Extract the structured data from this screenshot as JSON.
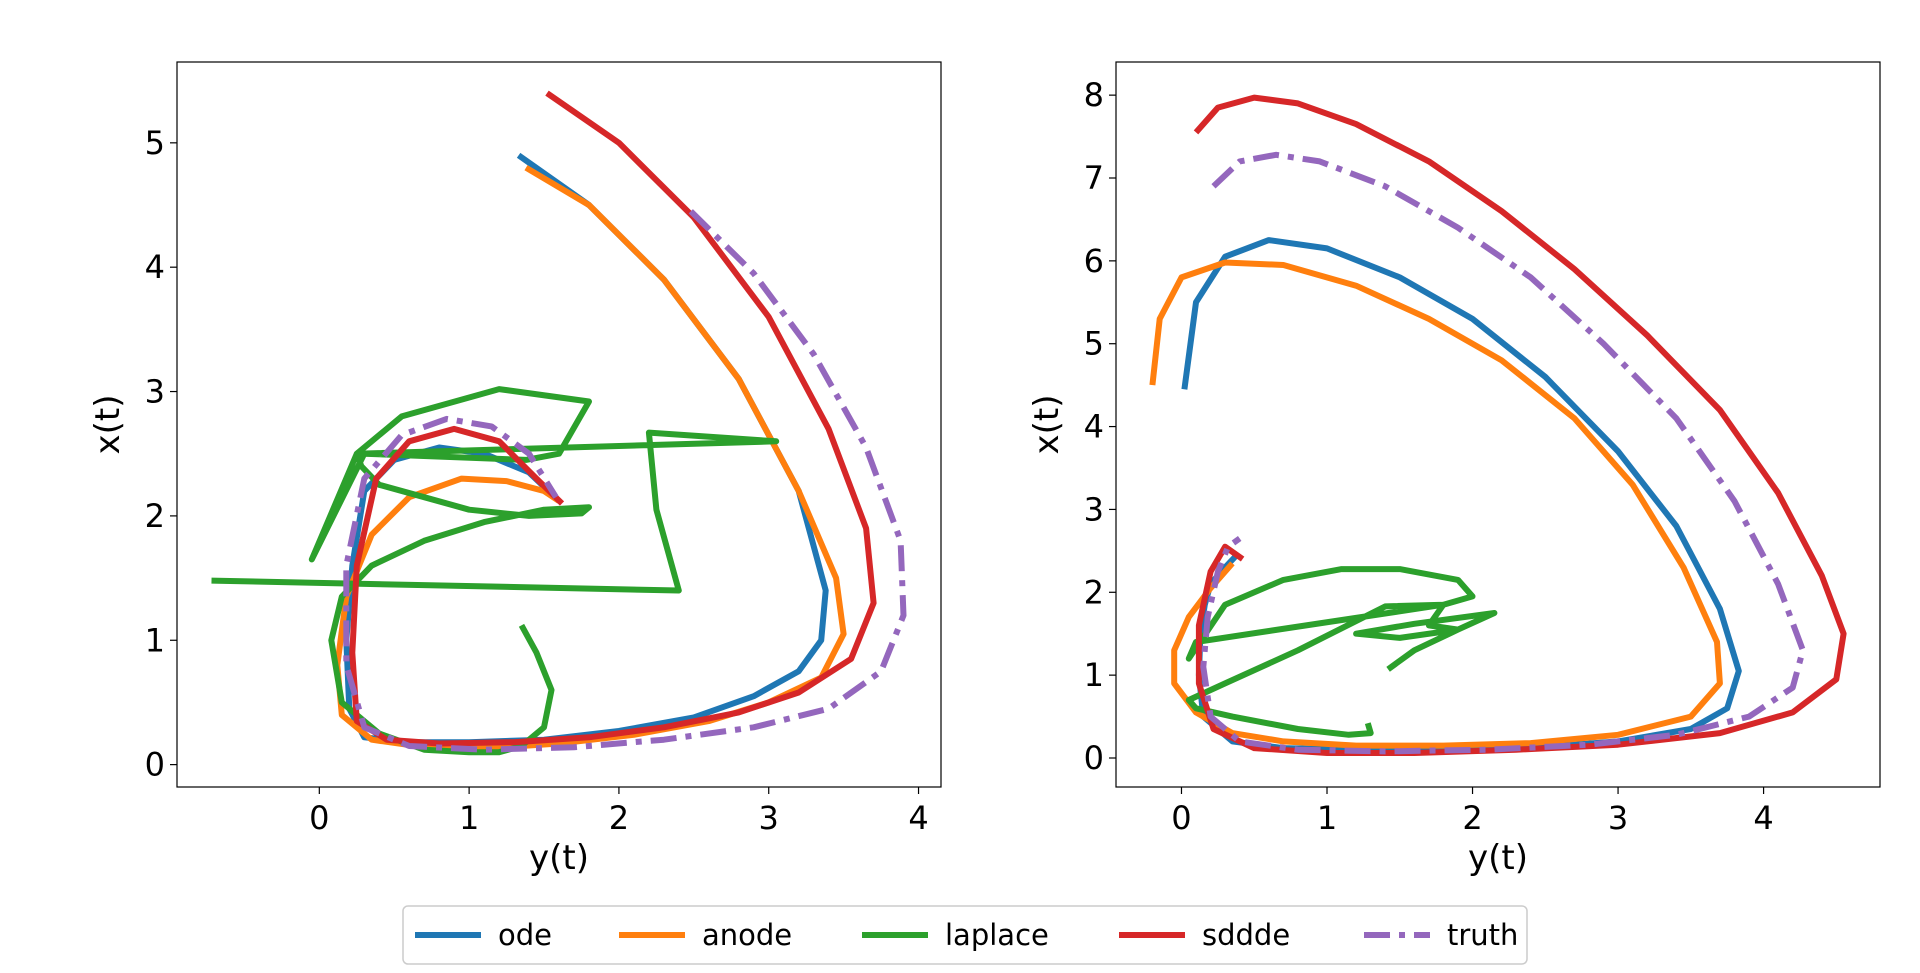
{
  "colors": {
    "ode": "#1f77b4",
    "anode": "#ff7f0e",
    "laplace": "#2ca02c",
    "sdde": "#d62728",
    "truth": "#9467bd"
  },
  "legend": {
    "placement": "bottom-center",
    "entries": [
      {
        "key": "ode",
        "label": "ode",
        "style": "solid"
      },
      {
        "key": "anode",
        "label": "anode",
        "style": "solid"
      },
      {
        "key": "laplace",
        "label": "laplace",
        "style": "solid"
      },
      {
        "key": "sdde",
        "label": "sddde",
        "style": "solid"
      },
      {
        "key": "truth",
        "label": "truth",
        "style": "dashdot"
      }
    ]
  },
  "chart_data": [
    {
      "type": "line",
      "title": "",
      "xlabel": "y(t)",
      "ylabel": "x(t)",
      "xlim": [
        -0.95,
        4.15
      ],
      "ylim": [
        -0.18,
        5.65
      ],
      "xticks": [
        0,
        1,
        2,
        3,
        4
      ],
      "yticks": [
        0,
        1,
        2,
        3,
        4,
        5
      ],
      "grid": false,
      "series": [
        {
          "key": "ode",
          "name": "ode",
          "x": [
            1.33,
            1.8,
            2.3,
            2.8,
            3.2,
            3.38,
            3.35,
            3.2,
            2.9,
            2.5,
            2.0,
            1.5,
            1.0,
            0.6,
            0.3,
            0.2,
            0.18,
            0.22,
            0.3,
            0.5,
            0.8,
            1.1,
            1.4,
            1.6
          ],
          "y": [
            4.9,
            4.5,
            3.9,
            3.1,
            2.2,
            1.4,
            1.0,
            0.75,
            0.55,
            0.38,
            0.27,
            0.2,
            0.18,
            0.18,
            0.22,
            0.45,
            1.0,
            1.6,
            2.2,
            2.45,
            2.55,
            2.5,
            2.35,
            2.12
          ]
        },
        {
          "key": "anode",
          "name": "anode",
          "x": [
            1.38,
            1.8,
            2.3,
            2.8,
            3.2,
            3.45,
            3.5,
            3.35,
            3.0,
            2.6,
            2.1,
            1.6,
            1.1,
            0.7,
            0.35,
            0.15,
            0.12,
            0.18,
            0.35,
            0.6,
            0.95,
            1.25,
            1.5,
            1.6
          ],
          "y": [
            4.8,
            4.5,
            3.9,
            3.1,
            2.2,
            1.5,
            1.05,
            0.7,
            0.5,
            0.35,
            0.24,
            0.17,
            0.13,
            0.14,
            0.2,
            0.4,
            0.8,
            1.35,
            1.85,
            2.15,
            2.3,
            2.28,
            2.2,
            2.12
          ]
        },
        {
          "key": "laplace",
          "name": "laplace",
          "x": [
            1.35,
            1.45,
            1.55,
            1.5,
            1.35,
            1.2,
            1.0,
            0.7,
            0.4,
            0.15,
            0.08,
            0.15,
            0.35,
            0.7,
            1.1,
            1.5,
            1.8,
            1.75,
            1.4,
            1.0,
            0.7,
            0.4,
            0.28,
            0.25,
            0.55,
            1.2,
            1.8,
            1.6,
            1.38,
            0.3,
            -0.05,
            0.25,
            3.05,
            2.2,
            2.25,
            2.4,
            -0.72
          ],
          "y": [
            1.12,
            0.9,
            0.6,
            0.3,
            0.15,
            0.1,
            0.1,
            0.12,
            0.25,
            0.5,
            1.0,
            1.35,
            1.6,
            1.8,
            1.95,
            2.05,
            2.07,
            2.02,
            2.0,
            2.05,
            2.15,
            2.25,
            2.4,
            2.5,
            2.8,
            3.02,
            2.92,
            2.5,
            2.45,
            2.5,
            1.65,
            2.5,
            2.6,
            2.67,
            2.05,
            1.4,
            1.48
          ]
        },
        {
          "key": "sdde",
          "name": "sddde",
          "x": [
            1.52,
            2.0,
            2.5,
            3.0,
            3.4,
            3.65,
            3.7,
            3.55,
            3.2,
            2.8,
            2.3,
            1.8,
            1.3,
            0.8,
            0.45,
            0.25,
            0.22,
            0.25,
            0.38,
            0.6,
            0.9,
            1.2,
            1.45,
            1.62
          ],
          "y": [
            5.4,
            5.0,
            4.4,
            3.6,
            2.7,
            1.9,
            1.3,
            0.85,
            0.58,
            0.42,
            0.3,
            0.22,
            0.18,
            0.17,
            0.2,
            0.35,
            0.9,
            1.6,
            2.3,
            2.6,
            2.7,
            2.6,
            2.3,
            2.1
          ]
        },
        {
          "key": "truth",
          "name": "truth",
          "x": [
            2.48,
            2.9,
            3.3,
            3.65,
            3.88,
            3.9,
            3.75,
            3.4,
            2.9,
            2.3,
            1.7,
            1.1,
            0.6,
            0.3,
            0.18,
            0.18,
            0.3,
            0.55,
            0.85,
            1.15,
            1.4,
            1.58
          ],
          "y": [
            4.45,
            3.95,
            3.3,
            2.55,
            1.8,
            1.2,
            0.75,
            0.45,
            0.3,
            0.2,
            0.14,
            0.12,
            0.15,
            0.3,
            0.8,
            1.6,
            2.3,
            2.65,
            2.78,
            2.72,
            2.5,
            2.15
          ]
        }
      ]
    },
    {
      "type": "line",
      "title": "",
      "xlabel": "y(t)",
      "ylabel": "x(t)",
      "xlim": [
        -0.45,
        4.8
      ],
      "ylim": [
        -0.35,
        8.4
      ],
      "xticks": [
        0,
        1,
        2,
        3,
        4
      ],
      "yticks": [
        0,
        1,
        2,
        3,
        4,
        5,
        6,
        7,
        8
      ],
      "grid": false,
      "series": [
        {
          "key": "ode",
          "name": "ode",
          "x": [
            0.02,
            0.1,
            0.3,
            0.6,
            1.0,
            1.5,
            2.0,
            2.5,
            3.0,
            3.4,
            3.7,
            3.83,
            3.75,
            3.5,
            3.0,
            2.4,
            1.8,
            1.2,
            0.7,
            0.35,
            0.15,
            0.12,
            0.13,
            0.16,
            0.2,
            0.3,
            0.38
          ],
          "y": [
            4.45,
            5.5,
            6.05,
            6.25,
            6.15,
            5.8,
            5.3,
            4.6,
            3.7,
            2.8,
            1.8,
            1.05,
            0.6,
            0.35,
            0.2,
            0.12,
            0.1,
            0.1,
            0.12,
            0.2,
            0.5,
            1.0,
            1.5,
            1.85,
            2.1,
            2.3,
            2.45
          ]
        },
        {
          "key": "anode",
          "name": "anode",
          "x": [
            -0.2,
            -0.15,
            0.0,
            0.3,
            0.7,
            1.2,
            1.7,
            2.2,
            2.7,
            3.1,
            3.45,
            3.68,
            3.7,
            3.5,
            3.0,
            2.4,
            1.8,
            1.2,
            0.7,
            0.35,
            0.1,
            -0.05,
            -0.05,
            0.05,
            0.2,
            0.35
          ],
          "y": [
            4.5,
            5.3,
            5.8,
            5.98,
            5.95,
            5.7,
            5.3,
            4.8,
            4.1,
            3.3,
            2.3,
            1.4,
            0.9,
            0.5,
            0.28,
            0.18,
            0.15,
            0.15,
            0.2,
            0.3,
            0.55,
            0.9,
            1.3,
            1.7,
            2.05,
            2.35
          ]
        },
        {
          "key": "laplace",
          "name": "laplace",
          "x": [
            1.42,
            1.6,
            1.9,
            2.15,
            1.6,
            1.2,
            1.5,
            1.9,
            1.7,
            1.8,
            0.1,
            0.05,
            0.3,
            0.7,
            1.1,
            1.5,
            1.9,
            2.0,
            1.8,
            1.4,
            0.8,
            0.3,
            0.05,
            0.1,
            0.35,
            0.8,
            1.15,
            1.3,
            1.28
          ],
          "y": [
            1.07,
            1.3,
            1.55,
            1.75,
            1.62,
            1.5,
            1.45,
            1.55,
            1.6,
            1.85,
            1.4,
            1.2,
            1.85,
            2.15,
            2.28,
            2.28,
            2.15,
            1.95,
            1.85,
            1.83,
            1.3,
            0.9,
            0.7,
            0.6,
            0.5,
            0.35,
            0.28,
            0.3,
            0.42
          ]
        },
        {
          "key": "sdde",
          "name": "sddde",
          "x": [
            0.1,
            0.25,
            0.5,
            0.8,
            1.2,
            1.7,
            2.2,
            2.7,
            3.2,
            3.7,
            4.1,
            4.4,
            4.55,
            4.5,
            4.2,
            3.7,
            3.0,
            2.3,
            1.6,
            1.0,
            0.5,
            0.22,
            0.12,
            0.12,
            0.2,
            0.3,
            0.42
          ],
          "y": [
            7.55,
            7.85,
            7.97,
            7.9,
            7.65,
            7.2,
            6.6,
            5.9,
            5.1,
            4.2,
            3.2,
            2.2,
            1.5,
            0.95,
            0.55,
            0.3,
            0.16,
            0.1,
            0.06,
            0.06,
            0.12,
            0.35,
            0.9,
            1.6,
            2.25,
            2.55,
            2.4
          ]
        },
        {
          "key": "truth",
          "name": "truth",
          "x": [
            0.22,
            0.4,
            0.65,
            0.95,
            1.4,
            1.9,
            2.4,
            2.9,
            3.4,
            3.8,
            4.1,
            4.27,
            4.2,
            3.9,
            3.4,
            2.8,
            2.1,
            1.4,
            0.8,
            0.4,
            0.2,
            0.15,
            0.18,
            0.25,
            0.32,
            0.4
          ],
          "y": [
            6.9,
            7.2,
            7.28,
            7.2,
            6.9,
            6.4,
            5.8,
            5.0,
            4.1,
            3.1,
            2.1,
            1.3,
            0.85,
            0.5,
            0.28,
            0.16,
            0.1,
            0.08,
            0.1,
            0.2,
            0.5,
            1.1,
            1.7,
            2.25,
            2.55,
            2.65
          ]
        }
      ]
    }
  ]
}
